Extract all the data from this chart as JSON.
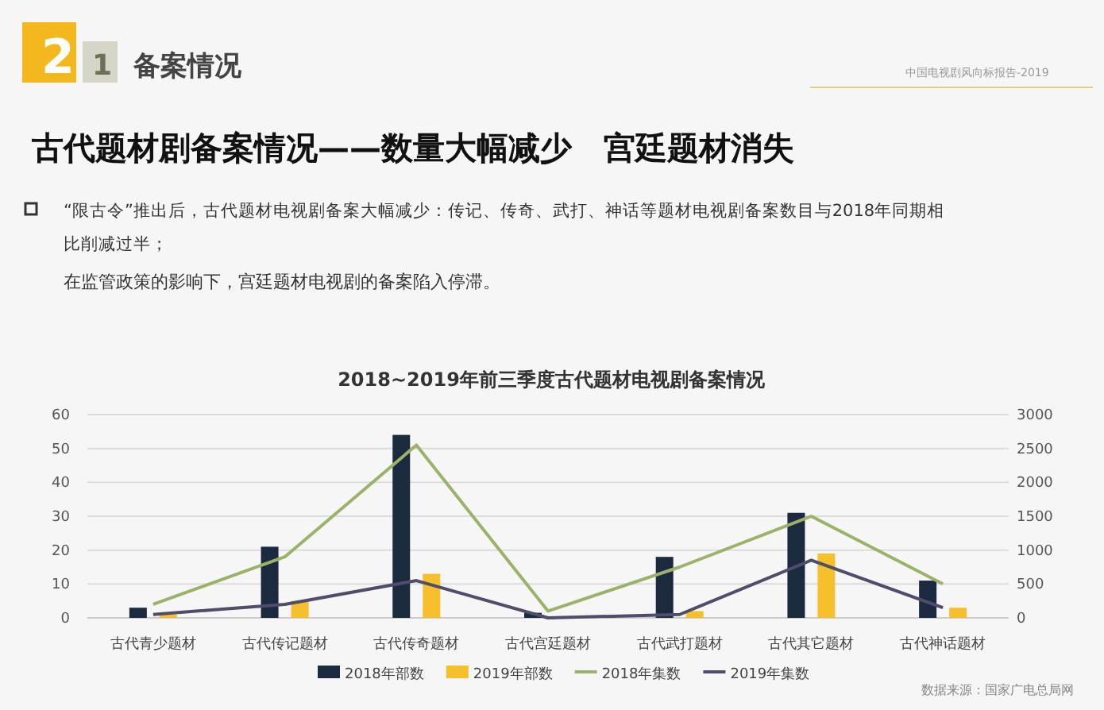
{
  "chart_data": {
    "type": "bar",
    "title": "2018~2019年前三季度古代题材电视剧备案情况",
    "annotations": [
      "2",
      "1",
      "备案情况",
      "中国电视剧风向标报告-2019",
      "古代题材剧备案情况——数量大幅减少　宫廷题材消失",
      "“限古令”推出后，古代题材电视剧备案大幅减少：传记、传奇、武打、神话等题材电视剧备案数目与2018年同期相比削减过半；",
      "在监管政策的影响下，宫廷题材电视剧的备案陷入停滞。",
      "数据来源：国家广电总局网"
    ],
    "categories": [
      "古代青少题材",
      "古代传记题材",
      "古代传奇题材",
      "古代宫廷题材",
      "古代武打题材",
      "古代其它题材",
      "古代神话题材"
    ],
    "series": [
      {
        "name": "2018年部数",
        "color": "#1b2a3e",
        "values": [
          3,
          21,
          54,
          1.5,
          18,
          31,
          11
        ]
      },
      {
        "name": "2019年部数",
        "color": "#f5c02c",
        "values": [
          1,
          5,
          13,
          0,
          2,
          19,
          3
        ]
      },
      {
        "name": "2018年集数",
        "type": "line",
        "axis": "y2",
        "color": "#9cb26a",
        "values": [
          200,
          900,
          2550,
          100,
          750,
          1500,
          500
        ]
      },
      {
        "name": "2019年集数",
        "type": "line",
        "axis": "y2",
        "color": "#4f4d6b",
        "values": [
          50,
          200,
          550,
          0,
          50,
          850,
          150
        ]
      }
    ],
    "ylim": [
      0,
      60
    ],
    "yticks": [
      0,
      10,
      20,
      30,
      40,
      50,
      60
    ],
    "y2lim": [
      0,
      3000
    ],
    "y2ticks": [
      0,
      500,
      1000,
      1500,
      2000,
      2500,
      3000
    ],
    "grid": "y",
    "legend": "bottom"
  }
}
